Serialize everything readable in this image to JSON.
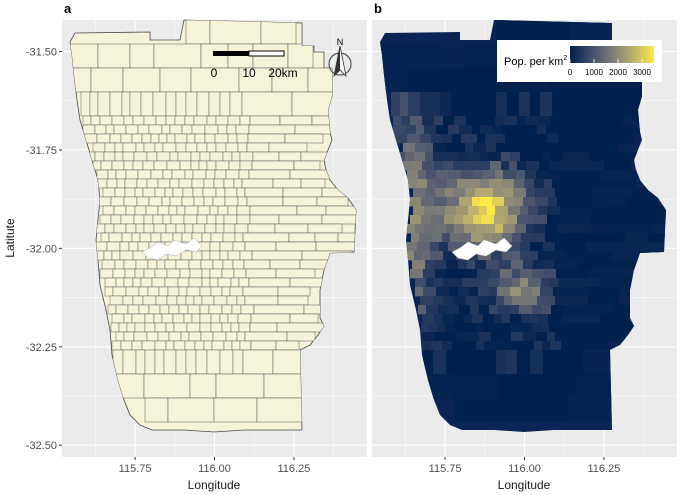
{
  "panels": [
    {
      "letter": "a",
      "xlabel": "Longitude",
      "ylabel": "Latitute",
      "fill": "#f6f3d9",
      "border": "#4a4a4a"
    },
    {
      "letter": "b",
      "xlabel": "Longitude",
      "ylabel": "",
      "fill": "#0a2456",
      "border": "none"
    }
  ],
  "axes": {
    "x_ticks": [
      "115.75",
      "116.00",
      "116.25"
    ],
    "y_ticks": [
      "-31.50",
      "-31.75",
      "-32.00",
      "-32.25",
      "-32.50"
    ],
    "x_range": [
      115.52,
      116.48
    ],
    "y_range": [
      -32.53,
      -31.42
    ]
  },
  "scale_bar": {
    "labels": [
      "0",
      "10",
      "20km"
    ]
  },
  "north_arrow": {
    "label": "N",
    "icon": "north-arrow-icon"
  },
  "legend": {
    "title": "Pop. per km",
    "title_sup": "2",
    "ticks": [
      "0",
      "1000",
      "2000",
      "3000"
    ],
    "range": [
      0,
      3500
    ],
    "colors": [
      "#00204d",
      "#414d6b",
      "#7c7b78",
      "#bcaf6f",
      "#ffea46"
    ]
  },
  "background_color": "#ebebeb",
  "grid_color": "#ffffff"
}
